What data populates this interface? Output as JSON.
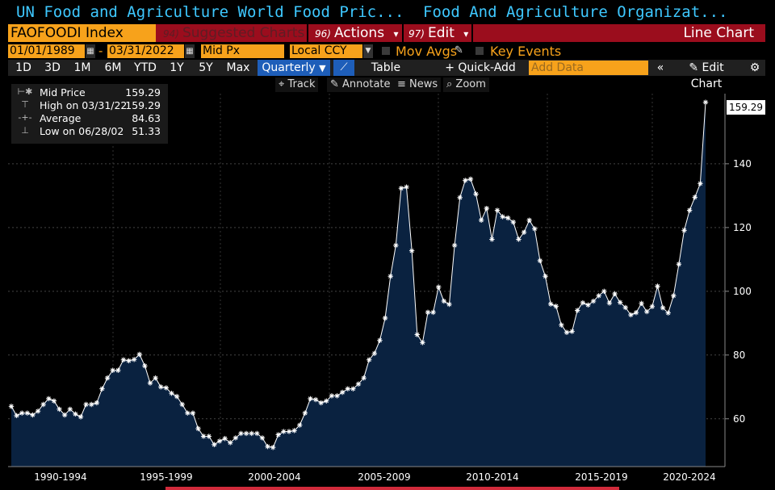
{
  "header": {
    "left_title": "UN Food and Agriculture World Food Pric...",
    "right_title": "Food And Agriculture Organizat..."
  },
  "command_bar": {
    "ticker": "FAOFOODI Index",
    "suggested": {
      "num": "94)",
      "label": "Suggested Charts"
    },
    "actions": {
      "num": "96)",
      "label": "Actions",
      "caret": "▾"
    },
    "edit": {
      "num": "97)",
      "label": "Edit",
      "caret": "▾"
    },
    "chart_type": "Line Chart"
  },
  "settings": {
    "start_date": "01/01/1989",
    "end_date": "03/31/2022",
    "dash": "-",
    "field": "Mid Px",
    "currency": "Local CCY",
    "mov_avgs": "Mov Avgs",
    "key_events": "Key Events"
  },
  "ranges": {
    "buttons": [
      "1D",
      "3D",
      "1M",
      "6M",
      "YTD",
      "1Y",
      "5Y",
      "Max"
    ],
    "frequency": "Quarterly",
    "table": "Table",
    "quick_add": "+ Quick-Add",
    "add_data_placeholder": "Add Data",
    "edit_chart": "Edit Chart"
  },
  "tools": {
    "track": "Track",
    "annotate": "Annotate",
    "news": "News",
    "zoom": "Zoom"
  },
  "legend": {
    "rows": [
      {
        "label": "Mid Price",
        "value": "159.29"
      },
      {
        "label": "High on 03/31/22",
        "value": "159.29"
      },
      {
        "label": "Average",
        "value": "84.63"
      },
      {
        "label": "Low on 06/28/02",
        "value": "51.33"
      }
    ]
  },
  "last_price_tag": "159.29",
  "colors": {
    "accent_orange": "#f7a21b",
    "command_red": "#9b0d1d",
    "header_blue": "#3ec8ff",
    "area_fill": "#0a2240",
    "line": "#ffffff"
  },
  "chart_data": {
    "type": "area",
    "ylim": [
      45,
      162
    ],
    "yticks": [
      60,
      80,
      100,
      120,
      140
    ],
    "x_labels": [
      "1990-1994",
      "1995-1999",
      "2000-2004",
      "2005-2009",
      "2010-2014",
      "2015-2019",
      "2020-2024"
    ],
    "x_start": "1989-Q1",
    "series": [
      {
        "values": [
          63.9,
          61.0,
          61.8,
          61.8,
          61.2,
          62.4,
          64.5,
          66.3,
          65.6,
          63.0,
          61.2,
          63.0,
          61.5,
          60.6,
          64.5,
          64.5,
          65.0,
          69.4,
          72.8,
          75.2,
          75.2,
          78.5,
          78.2,
          78.6,
          80.2,
          76.6,
          71.2,
          72.8,
          70.0,
          69.7,
          68.0,
          67.0,
          64.5,
          61.8,
          61.8,
          56.9,
          54.5,
          54.5,
          51.9,
          53.0,
          53.8,
          52.5,
          54.0,
          55.4,
          55.4,
          55.4,
          55.4,
          54.0,
          51.3,
          51.0,
          55.0,
          56.0,
          56.0,
          56.3,
          58.0,
          61.8,
          66.3,
          66.0,
          65.0,
          65.6,
          67.2,
          67.2,
          68.3,
          69.4,
          69.4,
          70.9,
          72.8,
          78.5,
          80.5,
          84.6,
          91.6,
          104.7,
          114.4,
          132.3,
          132.7,
          112.7,
          86.4,
          83.9,
          93.4,
          93.4,
          101.3,
          96.9,
          95.9,
          114.4,
          129.4,
          134.8,
          135.2,
          130.5,
          122.3,
          126.0,
          116.3,
          125.4,
          123.4,
          123.0,
          121.7,
          116.3,
          118.5,
          122.3,
          119.6,
          109.6,
          104.7,
          96.0,
          95.3,
          89.4,
          87.1,
          87.4,
          94.0,
          96.4,
          95.7,
          96.9,
          98.6,
          100.0,
          96.3,
          99.2,
          96.5,
          94.9,
          92.6,
          93.3,
          96.2,
          93.6,
          95.2,
          101.6,
          94.8,
          93.2,
          98.6,
          108.5,
          119.1,
          125.4,
          129.5,
          133.8,
          159.29
        ]
      }
    ]
  }
}
